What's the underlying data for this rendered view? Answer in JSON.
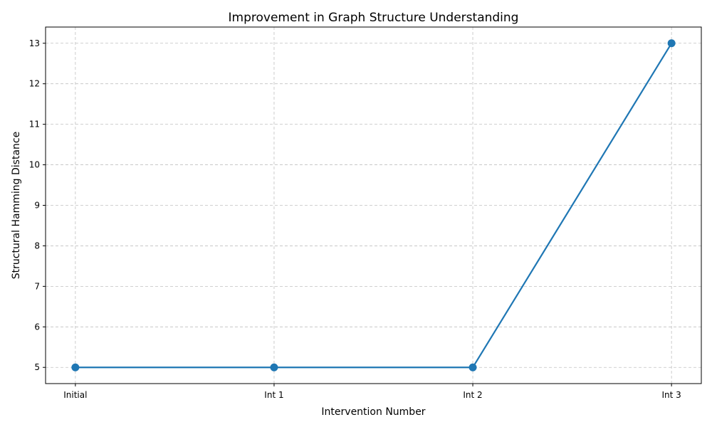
{
  "chart_data": {
    "type": "line",
    "title": "Improvement in Graph Structure Understanding",
    "xlabel": "Intervention Number",
    "ylabel": "Structural Hamming Distance",
    "categories": [
      "Initial",
      "Int 1",
      "Int 2",
      "Int 3"
    ],
    "series": [
      {
        "values": [
          5,
          5,
          5,
          13
        ],
        "color": "#1f77b4",
        "marker": "circle"
      }
    ],
    "yticks": [
      5,
      6,
      7,
      8,
      9,
      10,
      11,
      12,
      13
    ],
    "ylim": [
      4.6,
      13.4
    ],
    "grid": true,
    "grid_style": "dashed",
    "legend": false
  }
}
